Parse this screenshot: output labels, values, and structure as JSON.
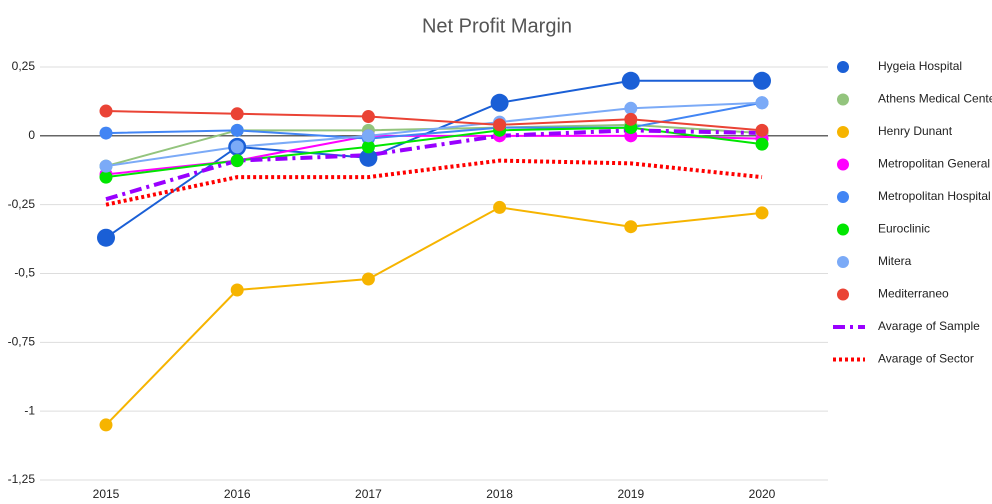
{
  "chart_data": {
    "type": "line",
    "title": "Net Profit Margin",
    "categories": [
      "2015",
      "2016",
      "2017",
      "2018",
      "2019",
      "2020"
    ],
    "ylim": [
      -1.25,
      0.25
    ],
    "yticks": [
      {
        "value": -1.25,
        "label": "-1,25"
      },
      {
        "value": -1,
        "label": "-1"
      },
      {
        "value": -0.75,
        "label": "-0,75"
      },
      {
        "value": -0.5,
        "label": "-0,5"
      },
      {
        "value": -0.25,
        "label": "-0,25"
      },
      0,
      {
        "value": 0.25,
        "label": "0,25"
      }
    ],
    "grid": true,
    "legend": "right",
    "series": [
      {
        "name": "Hygeia Hospital",
        "color": "#1a5fd6",
        "style": "solid",
        "markers": true,
        "values": [
          -0.37,
          -0.04,
          -0.08,
          0.12,
          0.2,
          0.2
        ]
      },
      {
        "name": "Athens Medical Center",
        "color": "#93c47d",
        "style": "solid",
        "markers": true,
        "values": [
          -0.11,
          0.02,
          0.02,
          0.03,
          0.04,
          0.01
        ]
      },
      {
        "name": "Henry Dunant",
        "color": "#f6b400",
        "style": "solid",
        "markers": true,
        "values": [
          -1.05,
          -0.56,
          -0.52,
          -0.26,
          -0.33,
          -0.28
        ]
      },
      {
        "name": "Metropolitan General",
        "color": "#ff00ff",
        "style": "solid",
        "markers": true,
        "values": [
          -0.14,
          -0.09,
          0.0,
          0.0,
          0.0,
          -0.01
        ]
      },
      {
        "name": "Metropolitan Hospital",
        "color": "#4285f4",
        "style": "solid",
        "markers": true,
        "values": [
          0.01,
          0.02,
          -0.01,
          0.03,
          0.03,
          0.12
        ]
      },
      {
        "name": "Euroclinic",
        "color": "#00e600",
        "style": "solid",
        "markers": true,
        "values": [
          -0.15,
          -0.09,
          -0.04,
          0.02,
          0.03,
          -0.03
        ]
      },
      {
        "name": "Mitera",
        "color": "#7baaf7",
        "style": "solid",
        "markers": true,
        "values": [
          -0.11,
          -0.04,
          0.0,
          0.05,
          0.1,
          0.12
        ]
      },
      {
        "name": "Mediterraneo",
        "color": "#ea4335",
        "style": "solid",
        "markers": true,
        "values": [
          0.09,
          0.08,
          0.07,
          0.04,
          0.06,
          0.02
        ]
      },
      {
        "name": "Avarage of Sample",
        "color": "#9900ff",
        "style": "dashdot",
        "markers": false,
        "values": [
          -0.23,
          -0.09,
          -0.07,
          0.0,
          0.02,
          0.01
        ]
      },
      {
        "name": "Avarage of Sector",
        "color": "#ff0000",
        "style": "dotted",
        "markers": false,
        "values": [
          -0.25,
          -0.15,
          -0.15,
          -0.09,
          -0.1,
          -0.15
        ]
      }
    ]
  }
}
